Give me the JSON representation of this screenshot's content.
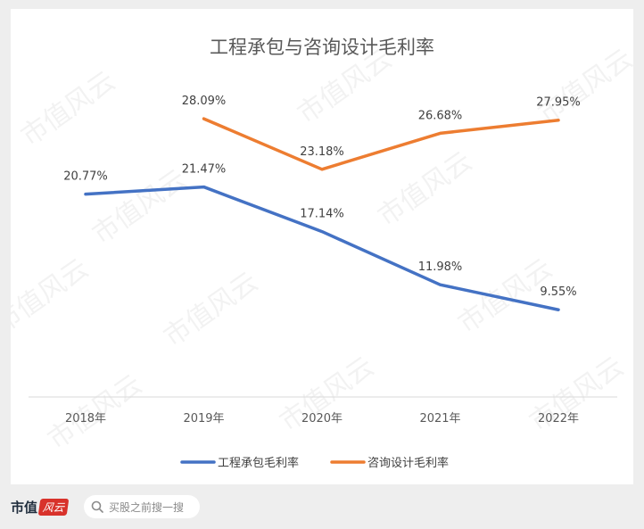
{
  "chart_data": {
    "type": "line",
    "title": "工程承包与咨询设计毛利率",
    "categories": [
      "2018年",
      "2019年",
      "2020年",
      "2021年",
      "2022年"
    ],
    "series": [
      {
        "name": "工程承包毛利率",
        "color": "#4472c4",
        "values": [
          20.77,
          21.47,
          17.14,
          11.98,
          9.55
        ],
        "labels": [
          "20.77%",
          "21.47%",
          "17.14%",
          "11.98%",
          "9.55%"
        ]
      },
      {
        "name": "咨询设计毛利率",
        "color": "#ed7d31",
        "values": [
          null,
          28.09,
          23.18,
          26.68,
          27.95
        ],
        "labels": [
          "",
          "28.09%",
          "23.18%",
          "26.68%",
          "27.95%"
        ]
      }
    ],
    "legend_position": "bottom",
    "grid": false
  },
  "watermark": "市值风云",
  "footer": {
    "brand": "市值",
    "brand_stamp": "风云",
    "search_text": "买股之前搜一搜",
    "icon": "search-icon"
  }
}
